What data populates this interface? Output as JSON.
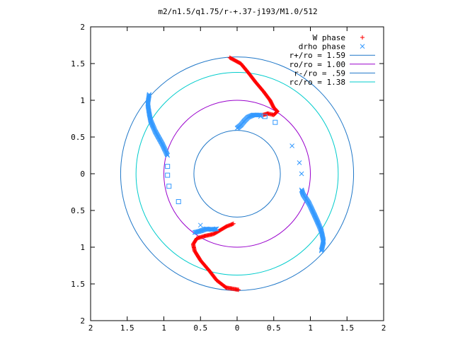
{
  "chart_data": {
    "type": "scatter",
    "title": "m2/n1.5/q1.75/r-+.37-j193/M1.0/512",
    "xlabel": "",
    "ylabel": "",
    "xlim": [
      -2,
      2
    ],
    "ylim": [
      -2,
      2
    ],
    "x_ticks": [
      -2,
      -1.5,
      -1,
      -0.5,
      0,
      0.5,
      1,
      1.5,
      2
    ],
    "y_ticks": [
      -2,
      -1.5,
      -1,
      -0.5,
      0,
      0.5,
      1,
      1.5,
      2
    ],
    "x_tick_labels": [
      "2",
      "1.5",
      "1",
      "0.5",
      "0",
      "0.5",
      "1",
      "1.5",
      "2"
    ],
    "y_tick_labels": [
      "2",
      "1.5",
      "1",
      "0.5",
      "0",
      "0.5",
      "1",
      "1.5",
      "2"
    ],
    "grid": false,
    "legend_position": "top-right",
    "series": [
      {
        "name": "W phase",
        "marker": "plus",
        "color": "#ff0000",
        "arms": [
          [
            [
              -0.1,
              1.58
            ],
            [
              0.05,
              1.5
            ],
            [
              0.15,
              1.38
            ],
            [
              0.25,
              1.25
            ],
            [
              0.36,
              1.12
            ],
            [
              0.45,
              1.0
            ],
            [
              0.5,
              0.9
            ],
            [
              0.55,
              0.85
            ],
            [
              0.5,
              0.8
            ],
            [
              0.42,
              0.82
            ],
            [
              0.35,
              0.8
            ]
          ],
          [
            [
              0.02,
              -1.58
            ],
            [
              -0.15,
              -1.55
            ],
            [
              -0.28,
              -1.45
            ],
            [
              -0.38,
              -1.32
            ],
            [
              -0.5,
              -1.18
            ],
            [
              -0.58,
              -1.05
            ],
            [
              -0.6,
              -0.96
            ],
            [
              -0.55,
              -0.88
            ],
            [
              -0.45,
              -0.85
            ],
            [
              -0.32,
              -0.82
            ],
            [
              -0.25,
              -0.78
            ],
            [
              -0.15,
              -0.72
            ],
            [
              -0.05,
              -0.68
            ]
          ]
        ]
      },
      {
        "name": "drho phase",
        "marker": "cross",
        "color": "#3399ff",
        "arms": [
          [
            [
              -1.2,
              1.08
            ],
            [
              -1.22,
              0.95
            ],
            [
              -1.2,
              0.82
            ],
            [
              -1.18,
              0.72
            ],
            [
              -1.12,
              0.58
            ],
            [
              -1.02,
              0.4
            ],
            [
              -0.95,
              0.25
            ]
          ],
          [
            [
              1.15,
              -1.05
            ],
            [
              1.18,
              -0.92
            ],
            [
              1.15,
              -0.78
            ],
            [
              1.1,
              -0.66
            ],
            [
              1.05,
              -0.55
            ],
            [
              0.98,
              -0.4
            ],
            [
              0.9,
              -0.28
            ],
            [
              0.88,
              -0.22
            ]
          ],
          [
            [
              0.0,
              0.62
            ],
            [
              0.05,
              0.66
            ],
            [
              0.1,
              0.72
            ],
            [
              0.15,
              0.77
            ],
            [
              0.22,
              0.8
            ],
            [
              0.32,
              0.8
            ]
          ],
          [
            [
              -0.58,
              -0.8
            ],
            [
              -0.5,
              -0.78
            ],
            [
              -0.42,
              -0.75
            ],
            [
              -0.35,
              -0.76
            ],
            [
              -0.28,
              -0.75
            ]
          ]
        ],
        "scattered": [
          [
            -0.5,
            -0.7
          ],
          [
            0.75,
            0.38
          ],
          [
            0.85,
            0.15
          ],
          [
            0.88,
            0.0
          ],
          [
            0.32,
            0.78
          ],
          [
            0.22,
            0.8
          ]
        ]
      },
      {
        "name": "",
        "marker": "square",
        "color": "#3399ff",
        "points": [
          [
            -0.95,
            0.1
          ],
          [
            -0.95,
            -0.02
          ],
          [
            -0.93,
            -0.17
          ],
          [
            -0.8,
            -0.38
          ],
          [
            0.38,
            0.78
          ],
          [
            0.52,
            0.7
          ]
        ]
      },
      {
        "name": "r+/ro = 1.59",
        "shape": "circle",
        "radius": 1.59,
        "color": "#1f77c8"
      },
      {
        "name": "ro/ro = 1.00",
        "shape": "circle",
        "radius": 1.0,
        "color": "#9900cc"
      },
      {
        "name": "r-/ro = .59",
        "shape": "circle",
        "radius": 0.59,
        "color": "#1f77c8"
      },
      {
        "name": "rc/ro = 1.38",
        "shape": "circle",
        "radius": 1.38,
        "color": "#00cccc"
      }
    ]
  }
}
